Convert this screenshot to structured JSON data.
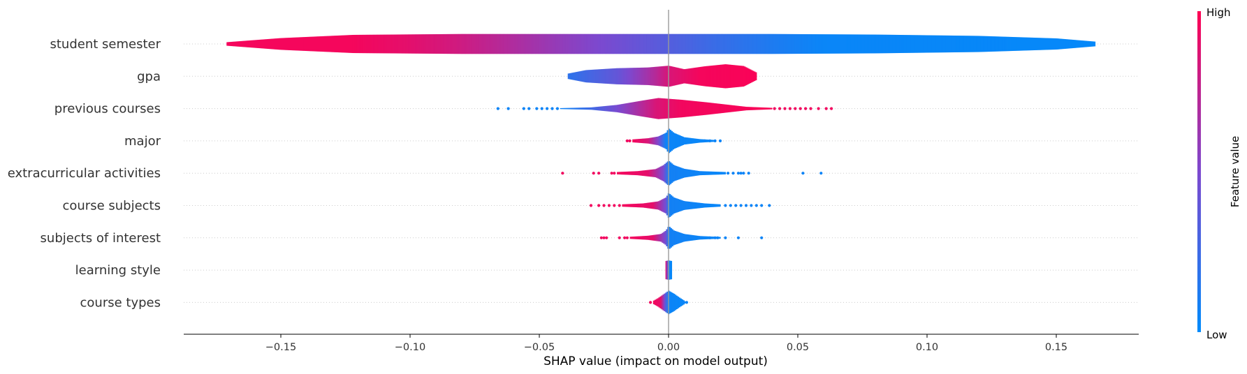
{
  "chart_data": {
    "type": "violin",
    "xlabel": "SHAP value (impact on model output)",
    "xlim": [
      -0.19,
      0.18
    ],
    "xticks": [
      -0.15,
      -0.1,
      -0.05,
      0.0,
      0.05,
      0.1,
      0.15
    ],
    "xtick_labels": [
      "−0.15",
      "−0.10",
      "−0.05",
      "0.00",
      "0.05",
      "0.10",
      "0.15"
    ],
    "features": [
      {
        "name": "student semester",
        "shap_min": -0.171,
        "shap_max": 0.165,
        "profile": [
          [
            -0.171,
            0.12
          ],
          [
            -0.15,
            0.4
          ],
          [
            -0.122,
            0.62
          ],
          [
            -0.08,
            0.68
          ],
          [
            -0.04,
            0.68
          ],
          [
            0.0,
            0.68
          ],
          [
            0.04,
            0.68
          ],
          [
            0.08,
            0.64
          ],
          [
            0.12,
            0.55
          ],
          [
            0.15,
            0.38
          ],
          [
            0.165,
            0.16
          ]
        ],
        "colors": [
          [
            -0.171,
            0.96
          ],
          [
            -0.122,
            0.96
          ],
          [
            -0.102,
            0.9
          ],
          [
            -0.082,
            0.82
          ],
          [
            -0.061,
            0.7
          ],
          [
            -0.041,
            0.58
          ],
          [
            -0.02,
            0.46
          ],
          [
            0.0,
            0.34
          ],
          [
            0.02,
            0.22
          ],
          [
            0.04,
            0.12
          ],
          [
            0.06,
            0.04
          ],
          [
            0.165,
            0.02
          ]
        ],
        "dots": []
      },
      {
        "name": "gpa",
        "shap_min": -0.039,
        "shap_max": 0.034,
        "profile": [
          [
            -0.039,
            0.18
          ],
          [
            -0.032,
            0.42
          ],
          [
            -0.02,
            0.55
          ],
          [
            -0.008,
            0.6
          ],
          [
            0.0,
            0.72
          ],
          [
            0.006,
            0.48
          ],
          [
            0.014,
            0.68
          ],
          [
            0.022,
            0.82
          ],
          [
            0.029,
            0.7
          ],
          [
            0.034,
            0.25
          ]
        ],
        "colors": [
          [
            -0.039,
            0.18
          ],
          [
            -0.02,
            0.4
          ],
          [
            -0.005,
            0.72
          ],
          [
            0.0,
            0.85
          ],
          [
            0.012,
            0.96
          ],
          [
            0.034,
            0.98
          ]
        ],
        "dots": []
      },
      {
        "name": "previous courses",
        "shap_min": -0.066,
        "shap_max": 0.063,
        "profile": [
          [
            -0.042,
            0.03
          ],
          [
            -0.03,
            0.08
          ],
          [
            -0.02,
            0.25
          ],
          [
            -0.01,
            0.55
          ],
          [
            -0.004,
            0.72
          ],
          [
            0.005,
            0.6
          ],
          [
            0.015,
            0.42
          ],
          [
            0.03,
            0.12
          ],
          [
            0.04,
            0.05
          ]
        ],
        "colors": [
          [
            -0.042,
            0.05
          ],
          [
            -0.03,
            0.25
          ],
          [
            -0.015,
            0.6
          ],
          [
            -0.005,
            0.85
          ],
          [
            0.005,
            0.95
          ],
          [
            0.04,
            0.98
          ]
        ],
        "dots": [
          [
            -0.066,
            0.05
          ],
          [
            -0.062,
            0.05
          ],
          [
            -0.056,
            0.05
          ],
          [
            -0.054,
            0.05
          ],
          [
            -0.051,
            0.05
          ],
          [
            -0.049,
            0.05
          ],
          [
            -0.047,
            0.05
          ],
          [
            -0.045,
            0.05
          ],
          [
            -0.043,
            0.05
          ],
          [
            0.041,
            0.95
          ],
          [
            0.043,
            0.95
          ],
          [
            0.045,
            0.95
          ],
          [
            0.047,
            0.95
          ],
          [
            0.049,
            0.95
          ],
          [
            0.051,
            0.95
          ],
          [
            0.053,
            0.95
          ],
          [
            0.055,
            0.95
          ],
          [
            0.058,
            0.95
          ],
          [
            0.061,
            0.95
          ],
          [
            0.063,
            0.95
          ]
        ]
      },
      {
        "name": "major",
        "shap_min": -0.016,
        "shap_max": 0.02,
        "profile": [
          [
            -0.014,
            0.1
          ],
          [
            -0.008,
            0.18
          ],
          [
            -0.004,
            0.3
          ],
          [
            -0.001,
            0.55
          ],
          [
            0.0,
            0.85
          ],
          [
            0.002,
            0.55
          ],
          [
            0.006,
            0.25
          ],
          [
            0.012,
            0.12
          ],
          [
            0.018,
            0.06
          ]
        ],
        "colors": [
          [
            -0.014,
            0.96
          ],
          [
            -0.008,
            0.85
          ],
          [
            -0.004,
            0.5
          ],
          [
            -0.001,
            0.05
          ],
          [
            0.018,
            0.03
          ]
        ],
        "dots": [
          [
            -0.016,
            0.95
          ],
          [
            -0.015,
            0.95
          ],
          [
            0.014,
            0.05
          ],
          [
            0.016,
            0.05
          ],
          [
            0.018,
            0.05
          ],
          [
            0.02,
            0.05
          ]
        ]
      },
      {
        "name": "extracurricular activities",
        "shap_min": -0.041,
        "shap_max": 0.059,
        "profile": [
          [
            -0.02,
            0.08
          ],
          [
            -0.012,
            0.14
          ],
          [
            -0.005,
            0.28
          ],
          [
            -0.002,
            0.55
          ],
          [
            0.0,
            0.85
          ],
          [
            0.002,
            0.55
          ],
          [
            0.006,
            0.3
          ],
          [
            0.012,
            0.14
          ],
          [
            0.022,
            0.08
          ]
        ],
        "colors": [
          [
            -0.02,
            0.96
          ],
          [
            -0.008,
            0.9
          ],
          [
            -0.002,
            0.5
          ],
          [
            0.0,
            0.08
          ],
          [
            0.022,
            0.03
          ]
        ],
        "dots": [
          [
            -0.041,
            0.95
          ],
          [
            -0.029,
            0.95
          ],
          [
            -0.027,
            0.95
          ],
          [
            -0.022,
            0.95
          ],
          [
            -0.021,
            0.95
          ],
          [
            0.023,
            0.05
          ],
          [
            0.025,
            0.05
          ],
          [
            0.027,
            0.05
          ],
          [
            0.029,
            0.05
          ],
          [
            0.031,
            0.05
          ],
          [
            0.028,
            0.05
          ],
          [
            0.052,
            0.05
          ],
          [
            0.059,
            0.05
          ]
        ]
      },
      {
        "name": "course subjects",
        "shap_min": -0.03,
        "shap_max": 0.039,
        "profile": [
          [
            -0.018,
            0.08
          ],
          [
            -0.01,
            0.14
          ],
          [
            -0.004,
            0.28
          ],
          [
            -0.001,
            0.55
          ],
          [
            0.0,
            0.85
          ],
          [
            0.002,
            0.55
          ],
          [
            0.006,
            0.3
          ],
          [
            0.014,
            0.14
          ],
          [
            0.02,
            0.08
          ]
        ],
        "colors": [
          [
            -0.018,
            0.96
          ],
          [
            -0.006,
            0.9
          ],
          [
            -0.001,
            0.45
          ],
          [
            0.0,
            0.08
          ],
          [
            0.02,
            0.03
          ]
        ],
        "dots": [
          [
            -0.03,
            0.95
          ],
          [
            -0.027,
            0.95
          ],
          [
            -0.025,
            0.95
          ],
          [
            -0.023,
            0.95
          ],
          [
            -0.021,
            0.95
          ],
          [
            -0.019,
            0.95
          ],
          [
            0.022,
            0.05
          ],
          [
            0.024,
            0.05
          ],
          [
            0.026,
            0.05
          ],
          [
            0.028,
            0.05
          ],
          [
            0.03,
            0.05
          ],
          [
            0.032,
            0.05
          ],
          [
            0.034,
            0.05
          ],
          [
            0.036,
            0.05
          ],
          [
            0.039,
            0.05
          ]
        ]
      },
      {
        "name": "subjects of interest",
        "shap_min": -0.026,
        "shap_max": 0.036,
        "profile": [
          [
            -0.015,
            0.07
          ],
          [
            -0.008,
            0.14
          ],
          [
            -0.003,
            0.26
          ],
          [
            -0.001,
            0.5
          ],
          [
            0.0,
            0.8
          ],
          [
            0.002,
            0.5
          ],
          [
            0.006,
            0.26
          ],
          [
            0.012,
            0.12
          ],
          [
            0.02,
            0.06
          ]
        ],
        "colors": [
          [
            -0.015,
            0.96
          ],
          [
            -0.006,
            0.9
          ],
          [
            -0.001,
            0.45
          ],
          [
            0.0,
            0.08
          ],
          [
            0.02,
            0.03
          ]
        ],
        "dots": [
          [
            -0.026,
            0.95
          ],
          [
            -0.025,
            0.95
          ],
          [
            -0.024,
            0.95
          ],
          [
            -0.019,
            0.95
          ],
          [
            -0.017,
            0.95
          ],
          [
            -0.016,
            0.95
          ],
          [
            0.013,
            0.05
          ],
          [
            0.016,
            0.05
          ],
          [
            0.018,
            0.05
          ],
          [
            0.019,
            0.05
          ],
          [
            0.022,
            0.05
          ],
          [
            0.027,
            0.05
          ],
          [
            0.036,
            0.05
          ]
        ]
      },
      {
        "name": "learning style",
        "shap_min": -0.001,
        "shap_max": 0.001,
        "profile": [
          [
            -0.0012,
            0.62
          ],
          [
            0.0,
            0.66
          ],
          [
            0.0012,
            0.62
          ]
        ],
        "colors": [
          [
            -0.0012,
            0.9
          ],
          [
            -0.0004,
            0.5
          ],
          [
            0.0,
            0.04
          ],
          [
            0.0012,
            0.03
          ]
        ],
        "dots": []
      },
      {
        "name": "course types",
        "shap_min": -0.007,
        "shap_max": 0.007,
        "profile": [
          [
            -0.006,
            0.1
          ],
          [
            -0.004,
            0.3
          ],
          [
            -0.002,
            0.55
          ],
          [
            0.0,
            0.8
          ],
          [
            0.002,
            0.6
          ],
          [
            0.004,
            0.35
          ],
          [
            0.006,
            0.12
          ]
        ],
        "colors": [
          [
            -0.006,
            0.96
          ],
          [
            -0.003,
            0.9
          ],
          [
            -0.001,
            0.3
          ],
          [
            0.0,
            0.05
          ],
          [
            0.006,
            0.03
          ]
        ],
        "dots": [
          [
            -0.007,
            0.95
          ],
          [
            0.006,
            0.05
          ],
          [
            0.007,
            0.05
          ]
        ]
      }
    ],
    "colorbar": {
      "title": "Feature value",
      "high_label": "High",
      "low_label": "Low",
      "low_color": "#008bfb",
      "high_color": "#ff0052"
    }
  }
}
